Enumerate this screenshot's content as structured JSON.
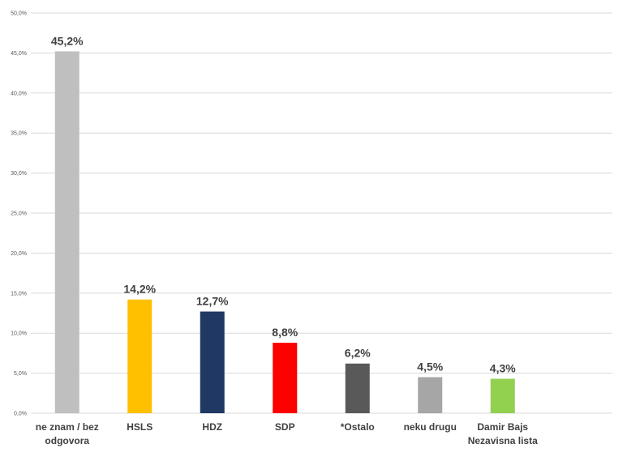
{
  "chart_data": {
    "type": "bar",
    "title": "",
    "xlabel": "",
    "ylabel": "",
    "ylim": [
      0,
      50
    ],
    "y_ticks": [
      0,
      5,
      10,
      15,
      20,
      25,
      30,
      35,
      40,
      45,
      50
    ],
    "y_tick_labels": [
      "0,0%",
      "5,0%",
      "10,0%",
      "15,0%",
      "20,0%",
      "25,0%",
      "30,0%",
      "35,0%",
      "40,0%",
      "45,0%",
      "50,0%"
    ],
    "grid": true,
    "legend": "none",
    "categories": [
      [
        "ne znam / bez",
        "odgovora"
      ],
      [
        "HSLS"
      ],
      [
        "HDZ"
      ],
      [
        "SDP"
      ],
      [
        "*Ostalo"
      ],
      [
        "neku drugu"
      ],
      [
        "Damir Bajs",
        "Nezavisna lista"
      ]
    ],
    "values": [
      45.2,
      14.2,
      12.7,
      8.8,
      6.2,
      4.5,
      4.3
    ],
    "value_labels": [
      "45,2%",
      "14,2%",
      "12,7%",
      "8,8%",
      "6,2%",
      "4,5%",
      "4,3%"
    ],
    "colors": [
      "#bfbfbf",
      "#ffc000",
      "#1f3864",
      "#ff0000",
      "#595959",
      "#a6a6a6",
      "#92d050"
    ]
  }
}
